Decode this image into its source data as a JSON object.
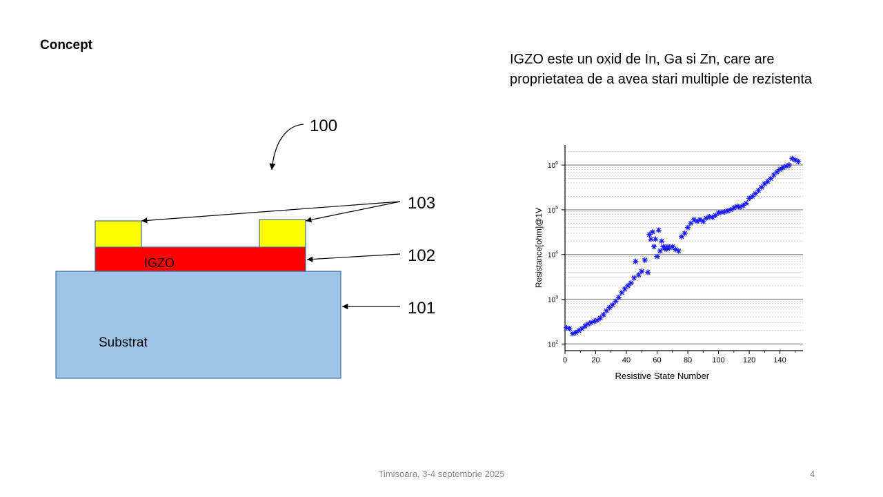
{
  "slide": {
    "title": "Concept",
    "description_lines": [
      "IGZO este un oxid de In, Ga si Zn, care are",
      "proprietatea de a avea stari multiple de rezistenta"
    ],
    "footer": "Timisoara, 3-4 septembrie 2025",
    "page_number": "4"
  },
  "diagram": {
    "device_label": "100",
    "ref_103": "103",
    "ref_102": "102",
    "ref_101": "101",
    "igzo_label": "IGZO",
    "substrate_label": "Substrat",
    "colors": {
      "electrode": "#ffff00",
      "igzo": "#ff0000",
      "substrate": "#9dc3e6",
      "outline": "#41719c"
    }
  },
  "chart_data": {
    "type": "scatter",
    "xlabel": "Resistive State Number",
    "ylabel": "Resistance[ohm]@1V",
    "x_ticks": [
      "0",
      "20",
      "40",
      "60",
      "80",
      "100",
      "120",
      "140"
    ],
    "y_ticks": [
      "10^2",
      "10^3",
      "10^4",
      "10^5",
      "10^6"
    ],
    "xlim": [
      0,
      155
    ],
    "ylim_log10": [
      1.85,
      6.45
    ],
    "y_scale": "log",
    "marker": "asterisk",
    "color": "#1a1aff",
    "grid": "horizontal",
    "series": [
      {
        "x": [
          1,
          3,
          5,
          7,
          9,
          11,
          13,
          15,
          17,
          19,
          21,
          23,
          25,
          27,
          29,
          31,
          33,
          35,
          37,
          39,
          41,
          43,
          45,
          46,
          48,
          50,
          52,
          54,
          55,
          56,
          57,
          58,
          59,
          60,
          61,
          62,
          63,
          64,
          65,
          66,
          67,
          68,
          70,
          72,
          74,
          76,
          78,
          80,
          82,
          84,
          86,
          88,
          90,
          92,
          94,
          96,
          98,
          100,
          102,
          104,
          106,
          108,
          110,
          112,
          114,
          116,
          118,
          120,
          122,
          124,
          126,
          128,
          130,
          132,
          134,
          136,
          138,
          140,
          142,
          144,
          146,
          148,
          150,
          152
        ],
        "y": [
          230,
          220,
          170,
          180,
          200,
          220,
          250,
          280,
          300,
          320,
          340,
          380,
          450,
          550,
          650,
          750,
          900,
          1100,
          1400,
          1700,
          2000,
          2300,
          3000,
          7000,
          3500,
          4200,
          7500,
          4000,
          28000,
          22000,
          32000,
          15000,
          22000,
          9000,
          35000,
          12000,
          20000,
          15000,
          14000,
          13000,
          15000,
          14000,
          15000,
          13000,
          12000,
          25000,
          30000,
          40000,
          50000,
          60000,
          55000,
          60000,
          55000,
          65000,
          70000,
          68000,
          75000,
          85000,
          88000,
          90000,
          95000,
          100000,
          110000,
          120000,
          115000,
          125000,
          140000,
          180000,
          200000,
          230000,
          270000,
          320000,
          380000,
          430000,
          500000,
          600000,
          700000,
          800000,
          880000,
          950000,
          1000000,
          1400000,
          1300000,
          1200000
        ]
      }
    ]
  }
}
